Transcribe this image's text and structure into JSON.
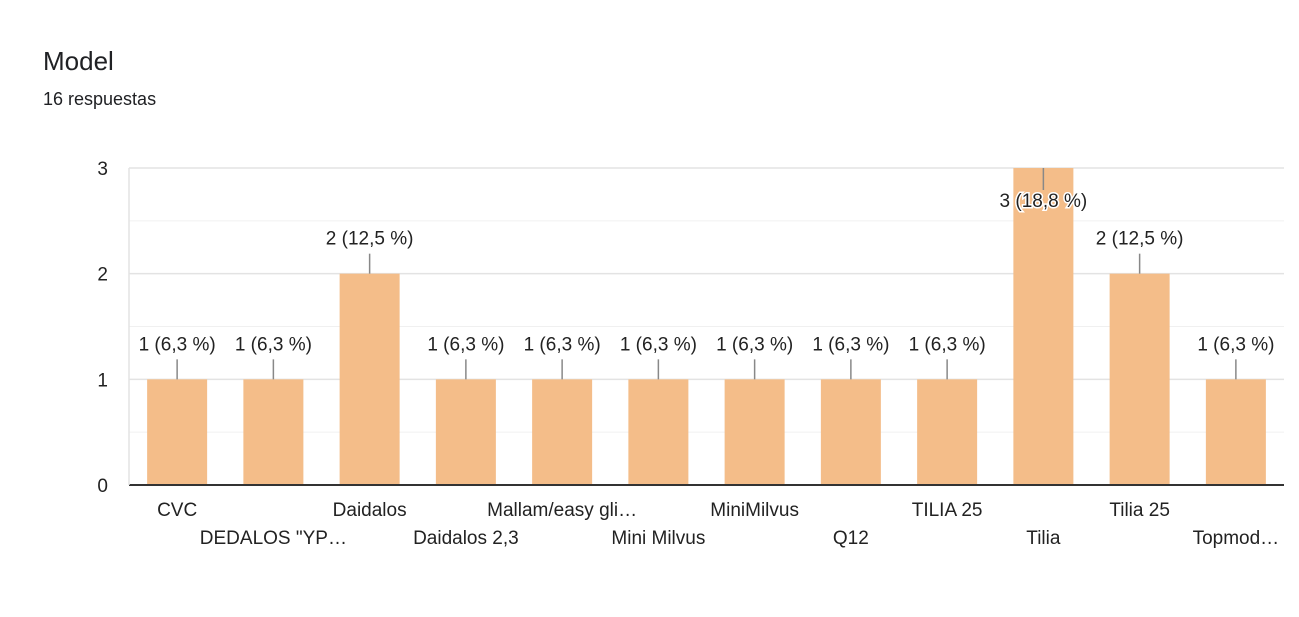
{
  "header": {
    "title": "Model",
    "response_count": "16 respuestas"
  },
  "colors": {
    "bar": "#f4bd89",
    "grid": "#e6e6e6",
    "axis": "#333333",
    "leader": "#888888",
    "text": "#222222"
  },
  "chart_data": {
    "type": "bar",
    "categories": [
      "CVC",
      "DEDALOS \"YP…",
      "Daidalos",
      "Daidalos 2,3",
      "Mallam/easy gli…",
      "Mini Milvus",
      "MiniMilvus",
      "Q12",
      "TILIA 25",
      "Tilia",
      "Tilia 25",
      "Topmod…"
    ],
    "values": [
      1,
      1,
      2,
      1,
      1,
      1,
      1,
      1,
      1,
      3,
      2,
      1
    ],
    "data_labels": [
      "1 (6,3 %)",
      "1 (6,3 %)",
      "2 (12,5 %)",
      "1 (6,3 %)",
      "1 (6,3 %)",
      "1 (6,3 %)",
      "1 (6,3 %)",
      "1 (6,3 %)",
      "1 (6,3 %)",
      "3 (18,8 %)",
      "2 (12,5 %)",
      "1 (6,3 %)"
    ],
    "y_ticks": [
      0,
      1,
      2,
      3
    ],
    "ylim": [
      0,
      3
    ],
    "grid": true,
    "legend": "none",
    "xlabel": "",
    "ylabel": ""
  }
}
